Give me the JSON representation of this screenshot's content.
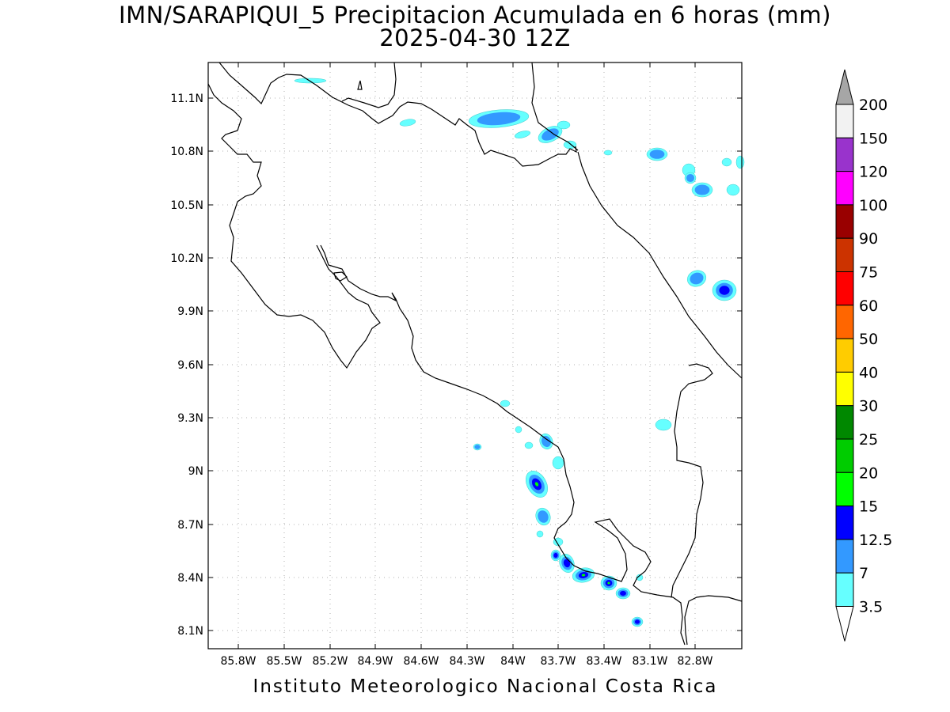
{
  "title": {
    "line1": "IMN/SARAPIQUI_5 Precipitacion Acumulada en 6 horas (mm)",
    "line2": "2025-04-30 12Z"
  },
  "footer": "Instituto Meteorologico Nacional Costa Rica",
  "map": {
    "y_ticks": [
      "11.1N",
      "10.8N",
      "10.5N",
      "10.2N",
      "9.9N",
      "9.6N",
      "9.3N",
      "9N",
      "8.7N",
      "8.4N",
      "8.1N"
    ],
    "x_ticks": [
      "85.8W",
      "85.5W",
      "85.2W",
      "84.9W",
      "84.6W",
      "84.3W",
      "84W",
      "83.7W",
      "83.4W",
      "83.1W",
      "82.8W"
    ],
    "grid": "dotted",
    "coastline_color": "#000000"
  },
  "colorbar": {
    "labels": [
      "3.5",
      "7",
      "12.5",
      "15",
      "20",
      "25",
      "30",
      "40",
      "50",
      "60",
      "75",
      "90",
      "100",
      "120",
      "150",
      "200"
    ],
    "colors": [
      "#ffffff",
      "#66ffff",
      "#3399ff",
      "#0000ff",
      "#00ff00",
      "#00cc00",
      "#008800",
      "#ffff00",
      "#ffcc00",
      "#ff6600",
      "#ff0000",
      "#cc3300",
      "#990000",
      "#ff00ff",
      "#9933cc",
      "#f2f2f2",
      "#a6a6a6"
    ]
  }
}
